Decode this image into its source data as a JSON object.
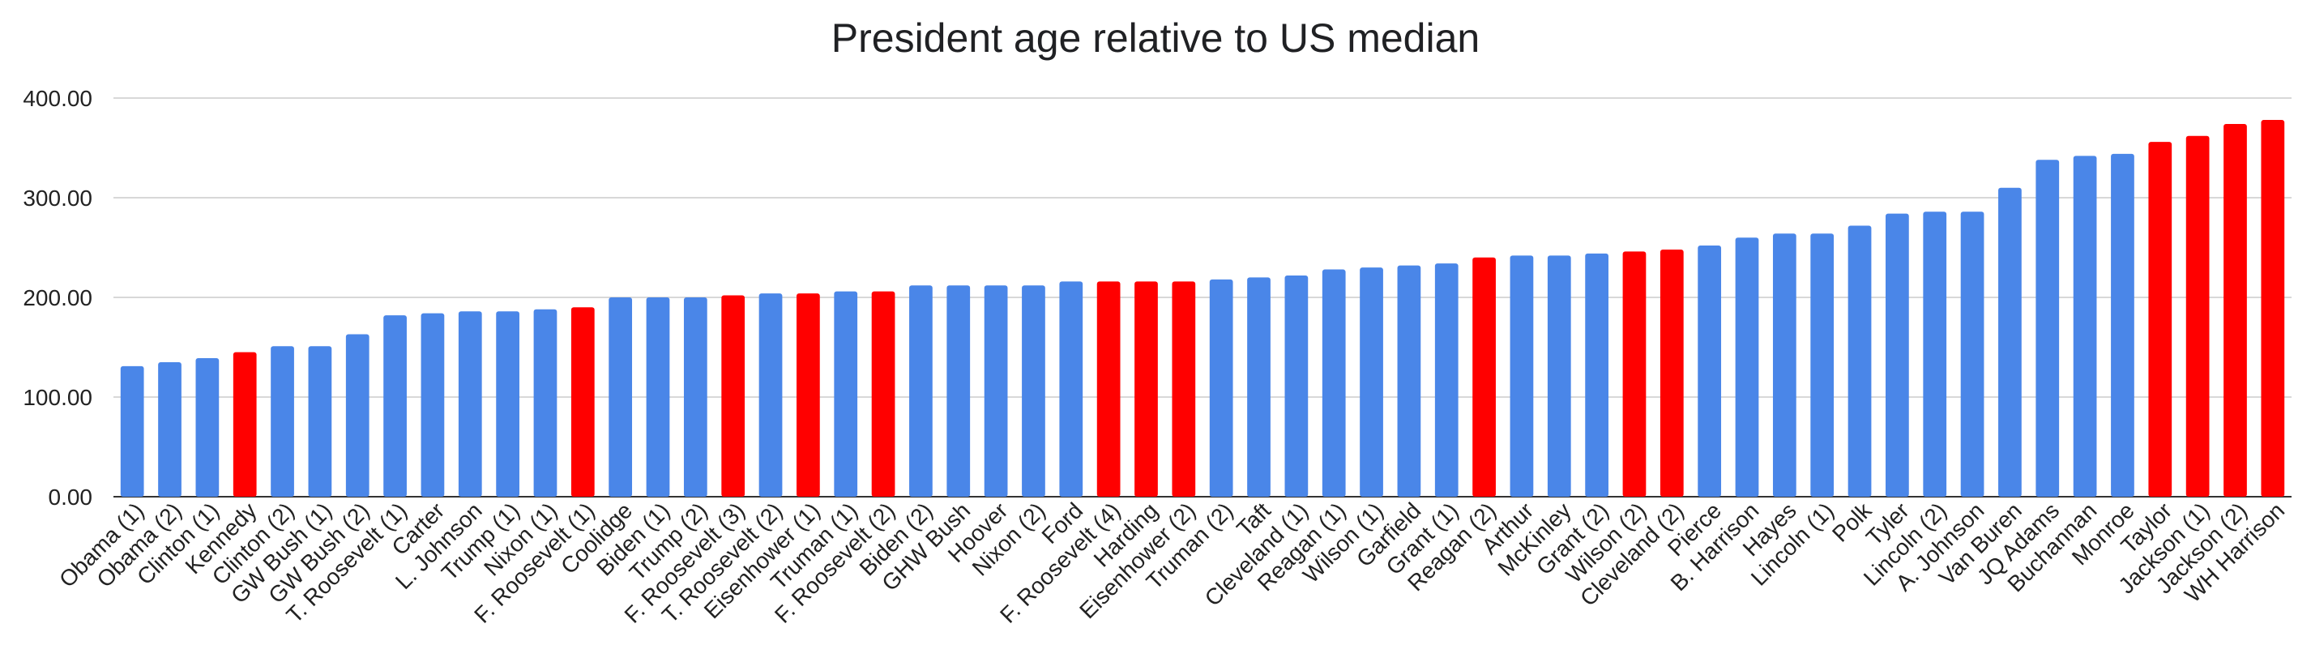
{
  "chart_data": {
    "type": "bar",
    "title": "President age relative to US median",
    "xlabel": "",
    "ylabel": "",
    "ylim": [
      0,
      400
    ],
    "yticks": [
      "0.00",
      "100.00",
      "200.00",
      "300.00",
      "400.00"
    ],
    "grid": true,
    "legend": "none",
    "colors": {
      "default": "#4a86e8",
      "highlight": "#ff0000"
    },
    "categories": [
      "Obama (1)",
      "Obama (2)",
      "Clinton (1)",
      "Kennedy",
      "Clinton (2)",
      "GW Bush (1)",
      "GW Bush (2)",
      "T. Roosevelt (1)",
      "Carter",
      "L. Johnson",
      "Trump (1)",
      "Nixon (1)",
      "F. Roosevelt (1)",
      "Coolidge",
      "Biden (1)",
      "Trump (2)",
      "F. Roosevelt (3)",
      "T. Roosevelt (2)",
      "Eisenhower (1)",
      "Truman (1)",
      "F. Roosevelt (2)",
      "Biden (2)",
      "GHW Bush",
      "Hoover",
      "Nixon (2)",
      "Ford",
      "F. Roosevelt (4)",
      "Harding",
      "Eisenhower (2)",
      "Truman (2)",
      "Taft",
      "Cleveland (1)",
      "Reagan (1)",
      "Wilson (1)",
      "Garfield",
      "Grant (1)",
      "Reagan (2)",
      "Arthur",
      "McKinley",
      "Grant (2)",
      "Wilson (2)",
      "Cleveland (2)",
      "Pierce",
      "B. Harrison",
      "Hayes",
      "Lincoln (1)",
      "Polk",
      "Tyler",
      "Lincoln (2)",
      "A. Johnson",
      "Van Buren",
      "JQ Adams",
      "Buchannan",
      "Monroe",
      "Taylor",
      "Jackson (1)",
      "Jackson (2)",
      "WH Harrison"
    ],
    "values": [
      131,
      135,
      139,
      145,
      151,
      151,
      163,
      182,
      184,
      186,
      186,
      188,
      190,
      200,
      200,
      200,
      202,
      204,
      204,
      206,
      206,
      212,
      212,
      212,
      212,
      216,
      216,
      216,
      216,
      218,
      220,
      222,
      228,
      230,
      232,
      234,
      240,
      242,
      242,
      244,
      246,
      248,
      252,
      260,
      264,
      264,
      272,
      284,
      286,
      286,
      310,
      338,
      342,
      344,
      356,
      362,
      374,
      378
    ],
    "highlighted": [
      "Kennedy",
      "F. Roosevelt (1)",
      "F. Roosevelt (3)",
      "Eisenhower (1)",
      "F. Roosevelt (2)",
      "F. Roosevelt (4)",
      "Harding",
      "Eisenhower (2)",
      "Reagan (2)",
      "Wilson (2)",
      "Cleveland (2)",
      "Taylor",
      "Jackson (1)",
      "Jackson (2)",
      "WH Harrison"
    ]
  }
}
